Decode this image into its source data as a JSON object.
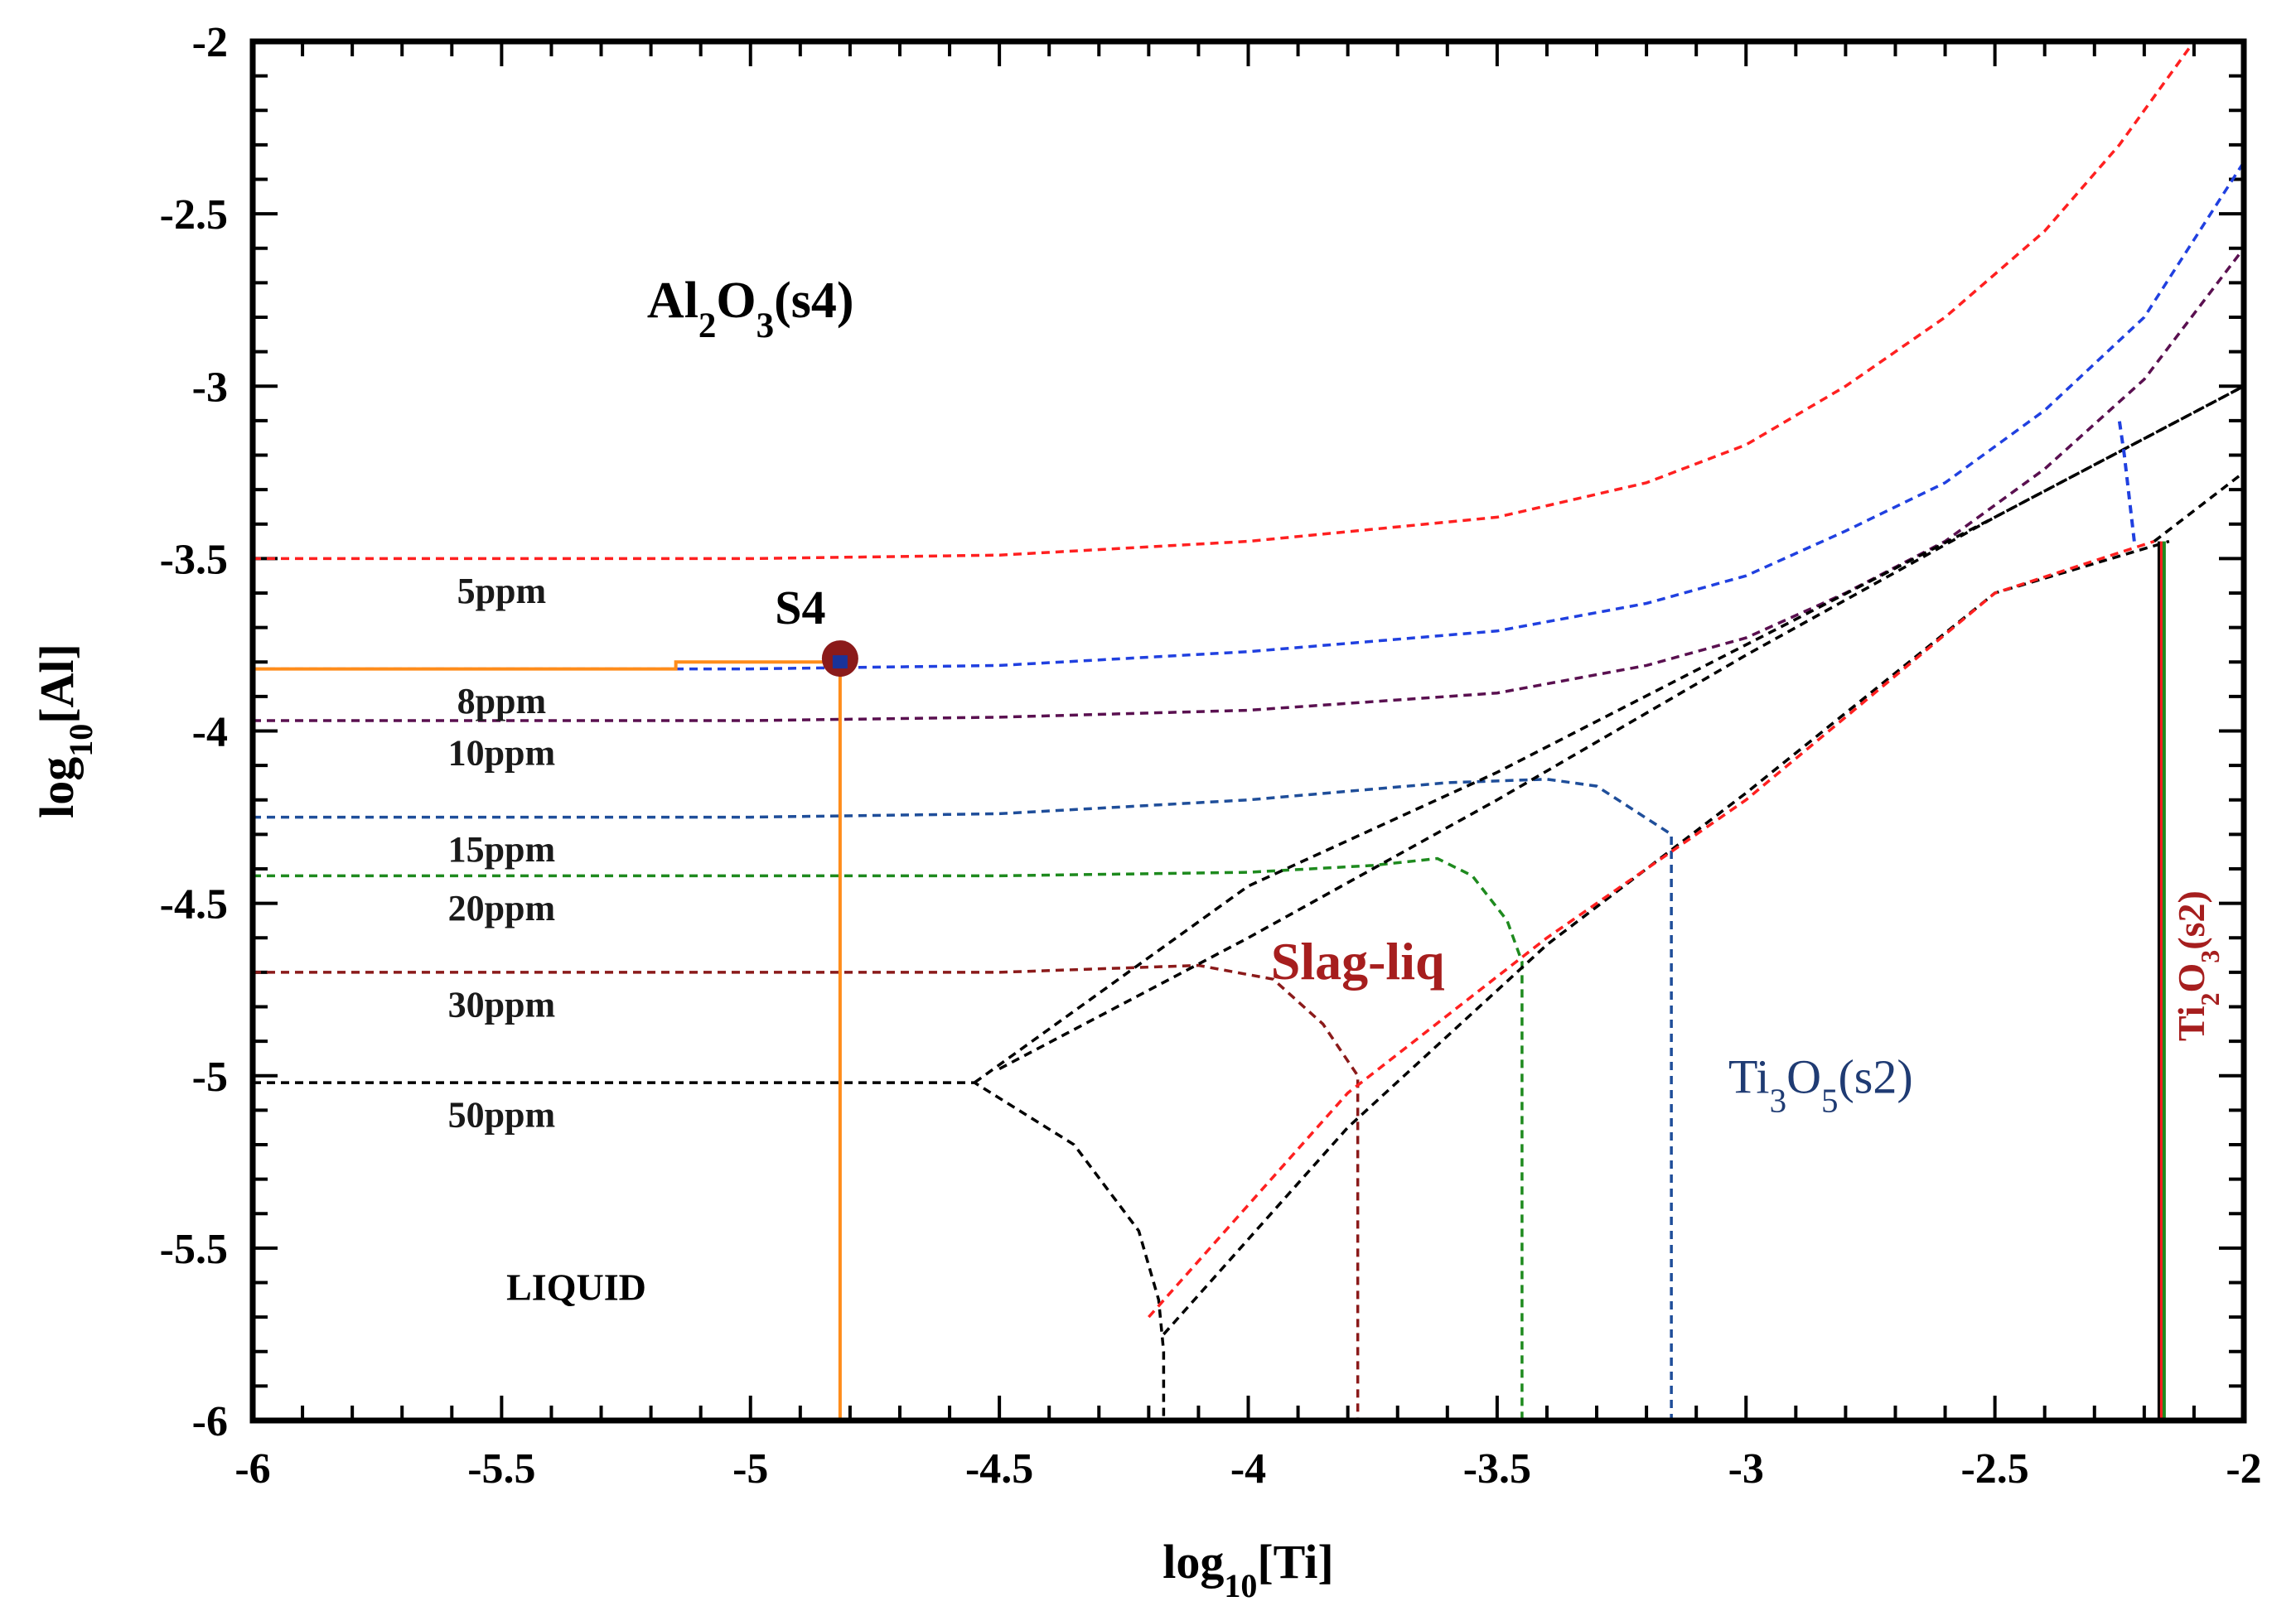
{
  "chart_data": {
    "type": "line",
    "title": "",
    "xlabel": {
      "main": "log",
      "sub": "10",
      "rest": "[Ti]"
    },
    "ylabel": {
      "main": "log",
      "sub": "10",
      "rest": "[Al]"
    },
    "xlim": [
      -6,
      -2
    ],
    "ylim": [
      -6,
      -2
    ],
    "x_ticks": [
      -6,
      -5.5,
      -5,
      -4.5,
      -4,
      -3.5,
      -3,
      -2.5,
      -2
    ],
    "y_ticks": [
      -2,
      -2.5,
      -3,
      -3.5,
      -4,
      -4.5,
      -5,
      -5.5,
      -6
    ],
    "x_tick_labels": [
      "-6",
      "-5.5",
      "-5",
      "-4.5",
      "-4",
      "-3.5",
      "-3",
      "-2.5",
      "-2"
    ],
    "y_tick_labels": [
      "-2",
      "-2.5",
      "-3",
      "-3.5",
      "-4",
      "-4.5",
      "-5",
      "-5.5",
      "-6"
    ],
    "iso_oxygen_series": [
      {
        "name": "5ppm",
        "label": "5ppm",
        "color": "#ff2020",
        "x": [
          -6,
          -5,
          -4.5,
          -4,
          -3.5,
          -3.2,
          -3,
          -2.8,
          -2.6,
          -2.4,
          -2.25,
          -2.1
        ],
        "y": [
          -3.5,
          -3.5,
          -3.49,
          -3.45,
          -3.38,
          -3.28,
          -3.17,
          -3.0,
          -2.8,
          -2.55,
          -2.3,
          -2.0
        ]
      },
      {
        "name": "8ppm",
        "label": "8ppm",
        "color": "#2040e0",
        "x": [
          -6,
          -5,
          -4.5,
          -4,
          -3.5,
          -3.2,
          -3,
          -2.8,
          -2.6,
          -2.4,
          -2.2,
          -2.0
        ],
        "y": [
          -3.82,
          -3.82,
          -3.81,
          -3.77,
          -3.71,
          -3.63,
          -3.55,
          -3.42,
          -3.28,
          -3.07,
          -2.8,
          -2.35
        ]
      },
      {
        "name": "10ppm",
        "label": "10ppm",
        "color": "#5a1050",
        "x": [
          -6,
          -5,
          -4.5,
          -4,
          -3.5,
          -3.2,
          -3,
          -2.8,
          -2.6,
          -2.4,
          -2.2,
          -2.0
        ],
        "y": [
          -3.97,
          -3.97,
          -3.96,
          -3.94,
          -3.89,
          -3.81,
          -3.73,
          -3.6,
          -3.45,
          -3.24,
          -2.98,
          -2.6
        ]
      },
      {
        "name": "15ppm",
        "label": "15ppm",
        "color": "#1f4e9a",
        "x": [
          -6,
          -5,
          -4.5,
          -4,
          -3.6,
          -3.4,
          -3.3,
          -3.15,
          -3.15
        ],
        "y": [
          -4.25,
          -4.25,
          -4.24,
          -4.2,
          -4.15,
          -4.14,
          -4.16,
          -4.3,
          -6
        ]
      },
      {
        "name": "20ppm",
        "label": "20ppm",
        "color": "#1e8a1e",
        "x": [
          -6,
          -5,
          -4.5,
          -4,
          -3.75,
          -3.62,
          -3.55,
          -3.48,
          -3.45,
          -3.45
        ],
        "y": [
          -4.42,
          -4.42,
          -4.42,
          -4.41,
          -4.39,
          -4.37,
          -4.42,
          -4.55,
          -4.67,
          -6
        ]
      },
      {
        "name": "30ppm",
        "label": "30ppm",
        "color": "#8b1a1a",
        "x": [
          -6,
          -5,
          -4.5,
          -4.1,
          -3.95,
          -3.85,
          -3.78,
          -3.78
        ],
        "y": [
          -4.7,
          -4.7,
          -4.7,
          -4.68,
          -4.72,
          -4.85,
          -5.0,
          -6
        ]
      },
      {
        "name": "50ppm",
        "label": "50ppm",
        "color": "#000000",
        "x": [
          -6,
          -5,
          -4.55,
          -4.35,
          -4.22,
          -4.18,
          -4.17,
          -4.17
        ],
        "y": [
          -5.02,
          -5.02,
          -5.02,
          -5.2,
          -5.45,
          -5.65,
          -5.8,
          -6
        ]
      }
    ],
    "phase_boundaries": [
      {
        "name": "slag-upper-1",
        "color": "#000000",
        "x": [
          -4.55,
          -4.0,
          -3.5,
          -3.0,
          -2.5,
          -2.0
        ],
        "y": [
          -5.02,
          -4.45,
          -4.12,
          -3.75,
          -3.38,
          -3.0
        ]
      },
      {
        "name": "slag-upper-2",
        "color": "#000000",
        "x": [
          -4.5,
          -4.0,
          -3.5,
          -3.0,
          -2.5,
          -2.0
        ],
        "y": [
          -4.98,
          -4.6,
          -4.2,
          -3.78,
          -3.38,
          -3.0
        ]
      },
      {
        "name": "slag-lower-1",
        "color": "#000000",
        "x": [
          -4.17,
          -3.8,
          -3.4,
          -3.0,
          -2.5,
          -2.15
        ],
        "y": [
          -5.75,
          -5.15,
          -4.62,
          -4.18,
          -3.6,
          -3.45
        ]
      },
      {
        "name": "slag-lower-2",
        "color": "#ff2020",
        "x": [
          -4.2,
          -3.8,
          -3.4,
          -3.0,
          -2.5,
          -2.18
        ],
        "y": [
          -5.7,
          -5.05,
          -4.6,
          -4.2,
          -3.6,
          -3.45
        ]
      },
      {
        "name": "ti2o3-boundary",
        "color": "#000000",
        "x": [
          -2.18,
          -2.0
        ],
        "y": [
          -3.45,
          -3.25
        ]
      }
    ],
    "phase_lines": [
      {
        "name": "Ti2O3 boundary dark",
        "color": "#000000",
        "x": [
          -2.17,
          -2.17
        ],
        "y": [
          -3.45,
          -6
        ]
      },
      {
        "name": "Ti2O3 boundary red",
        "color": "#ff2020",
        "x": [
          -2.165,
          -2.165
        ],
        "y": [
          -3.45,
          -6
        ]
      },
      {
        "name": "Ti2O3 boundary green",
        "color": "#1e8a1e",
        "x": [
          -2.16,
          -2.16
        ],
        "y": [
          -3.45,
          -6
        ]
      },
      {
        "name": "Ti3O5 boundary blue",
        "color": "#2040e0",
        "x": [
          -2.22,
          -2.24,
          -2.25
        ],
        "y": [
          -3.45,
          -3.2,
          -3.1
        ]
      }
    ],
    "marker": {
      "label": "S4",
      "x": -4.82,
      "y": -3.79,
      "color": "#8b1a1a"
    },
    "guide_color": "#ff8c1a",
    "region_labels": [
      {
        "name": "al2o3",
        "main": "Al",
        "sub1": "2",
        "mid": "O",
        "sub2": "3",
        "rest": "(s4)",
        "x": -5.0,
        "y": -2.8,
        "color": "#000000"
      },
      {
        "name": "ti3o5",
        "main": "Ti",
        "sub1": "3",
        "mid": "O",
        "sub2": "5",
        "rest": "(s2)",
        "x": -2.85,
        "y": -5.05,
        "color": "#1f3b73"
      },
      {
        "name": "slag",
        "text": "Slag-liq",
        "x": -3.78,
        "y": -4.72,
        "color": "#a61e1e"
      },
      {
        "name": "liquid",
        "text": "LIQUID",
        "x": -5.35,
        "y": -5.65,
        "color": "#000000"
      },
      {
        "name": "ti2o3",
        "main": "Ti",
        "sub1": "2",
        "mid": "O",
        "sub2": "3",
        "rest": "(s2)",
        "x": -2.1,
        "y": -4.9,
        "color": "#a61e1e"
      }
    ],
    "ppm_label_positions": [
      {
        "label": "5ppm",
        "x": -5.5,
        "y": -3.6
      },
      {
        "label": "8ppm",
        "x": -5.5,
        "y": -3.92
      },
      {
        "label": "10ppm",
        "x": -5.5,
        "y": -4.07
      },
      {
        "label": "15ppm",
        "x": -5.5,
        "y": -4.35
      },
      {
        "label": "20ppm",
        "x": -5.5,
        "y": -4.52
      },
      {
        "label": "30ppm",
        "x": -5.5,
        "y": -4.8
      },
      {
        "label": "50ppm",
        "x": -5.5,
        "y": -5.12
      }
    ]
  }
}
